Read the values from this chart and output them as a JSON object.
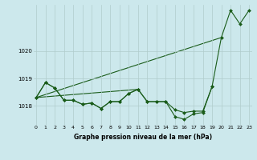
{
  "bg_color": "#cce8ec",
  "grid_color": "#b0cccc",
  "line_color": "#1a5c1a",
  "marker_color": "#1a5c1a",
  "x": [
    0,
    1,
    2,
    3,
    4,
    5,
    6,
    7,
    8,
    9,
    10,
    11,
    12,
    13,
    14,
    15,
    16,
    17,
    18,
    19,
    20,
    21,
    22,
    23
  ],
  "series1": [
    1018.3,
    1018.85,
    1018.65,
    1018.2,
    1018.2,
    1018.05,
    1018.1,
    1017.9,
    1018.15,
    1018.15,
    1018.45,
    1018.6,
    1018.15,
    1018.15,
    1018.15,
    1017.85,
    1017.75,
    1017.8,
    1017.8,
    1018.7,
    1020.5,
    1021.5,
    1021.0,
    1021.5
  ],
  "series2": [
    1018.3,
    1018.85,
    1018.65,
    1018.2,
    1018.2,
    1018.05,
    1018.1,
    1017.9,
    1018.15,
    1018.15,
    1018.45,
    1018.6,
    1018.15,
    1018.15,
    1018.15,
    1017.6,
    1017.5,
    1017.7,
    1017.75,
    1018.7,
    null,
    null,
    null,
    null
  ],
  "series3_x": [
    0,
    11
  ],
  "series3_y": [
    1018.3,
    1018.6
  ],
  "series4_x": [
    0,
    20
  ],
  "series4_y": [
    1018.3,
    1020.5
  ],
  "yticks": [
    1018,
    1019,
    1020
  ],
  "xticks": [
    0,
    1,
    2,
    3,
    4,
    5,
    6,
    7,
    8,
    9,
    10,
    11,
    12,
    13,
    14,
    15,
    16,
    17,
    18,
    19,
    20,
    21,
    22,
    23
  ],
  "xlabel": "Graphe pression niveau de la mer (hPa)",
  "ylim": [
    1017.3,
    1021.7
  ],
  "xlim": [
    -0.3,
    23.3
  ]
}
